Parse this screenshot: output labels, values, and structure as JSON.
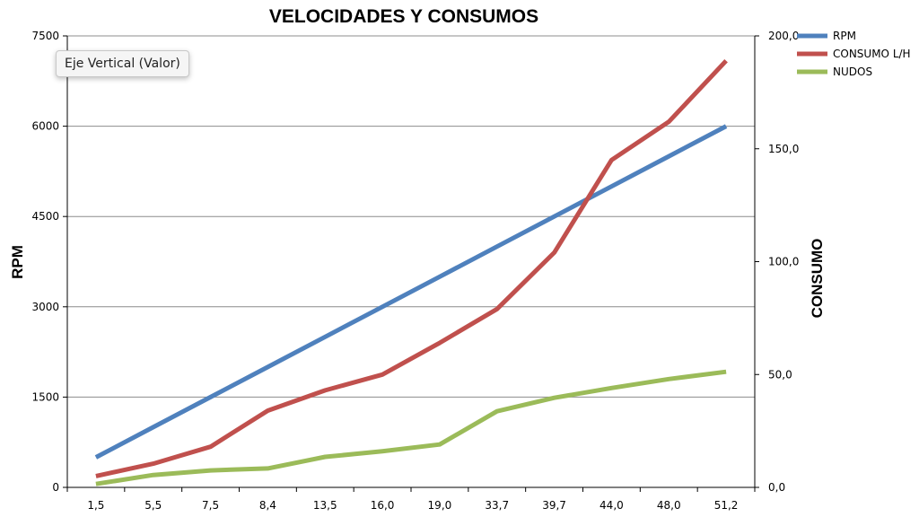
{
  "tooltip": "Eje Vertical (Valor)",
  "chart_data": {
    "type": "line",
    "title": "VELOCIDADES Y CONSUMOS",
    "xlabel": "",
    "ylabel": "RPM",
    "y2label": "CONSUMO",
    "categories": [
      "1,5",
      "5,5",
      "7,5",
      "8,4",
      "13,5",
      "16,0",
      "19,0",
      "33,7",
      "39,7",
      "44,0",
      "48,0",
      "51,2"
    ],
    "ylim": [
      0,
      7500
    ],
    "y_ticks": [
      "0",
      "1500",
      "3000",
      "4500",
      "6000",
      "7500"
    ],
    "y2lim": [
      0,
      200
    ],
    "y2_ticks": [
      "0,0",
      "50,0",
      "100,0",
      "150,0",
      "200,0"
    ],
    "grid": true,
    "legend": "top-right",
    "series": [
      {
        "name": "RPM",
        "axis": "left",
        "color": "#4f81bd",
        "values": [
          500,
          1000,
          1500,
          2000,
          2500,
          3000,
          3500,
          4000,
          4500,
          5000,
          5500,
          6000
        ]
      },
      {
        "name": "CONSUMO L/H",
        "axis": "right",
        "color": "#c0504d",
        "values": [
          5,
          10.5,
          18,
          34,
          43,
          50,
          64,
          79,
          104,
          145,
          162,
          189
        ]
      },
      {
        "name": "NUDOS",
        "axis": "right",
        "color": "#9bbb59",
        "values": [
          1.5,
          5.5,
          7.5,
          8.4,
          13.5,
          16.0,
          19.0,
          33.7,
          39.7,
          44.0,
          48.0,
          51.2
        ]
      }
    ]
  }
}
